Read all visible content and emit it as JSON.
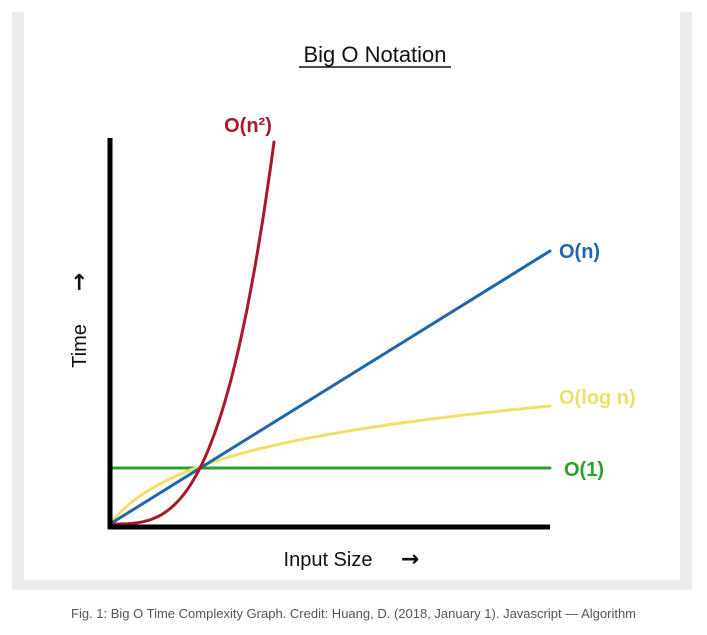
{
  "caption": "Fig. 1: Big O Time Complexity Graph. Credit: Huang, D. (2018, January 1). Javascript — Algorithm",
  "chart_data": {
    "type": "line",
    "title": "Big O Notation",
    "xlabel": "Input Size",
    "ylabel": "Time",
    "grid": false,
    "legend": "inline labels at line ends",
    "series": [
      {
        "name": "O(n²)",
        "color": "#a8192b",
        "function": "n^2"
      },
      {
        "name": "O(n)",
        "color": "#2166a8",
        "function": "n"
      },
      {
        "name": "O(log n)",
        "color": "#f0e068",
        "function": "log n"
      },
      {
        "name": "O(1)",
        "color": "#2ca02c",
        "function": "1"
      }
    ],
    "arrow_glyph": "→"
  }
}
